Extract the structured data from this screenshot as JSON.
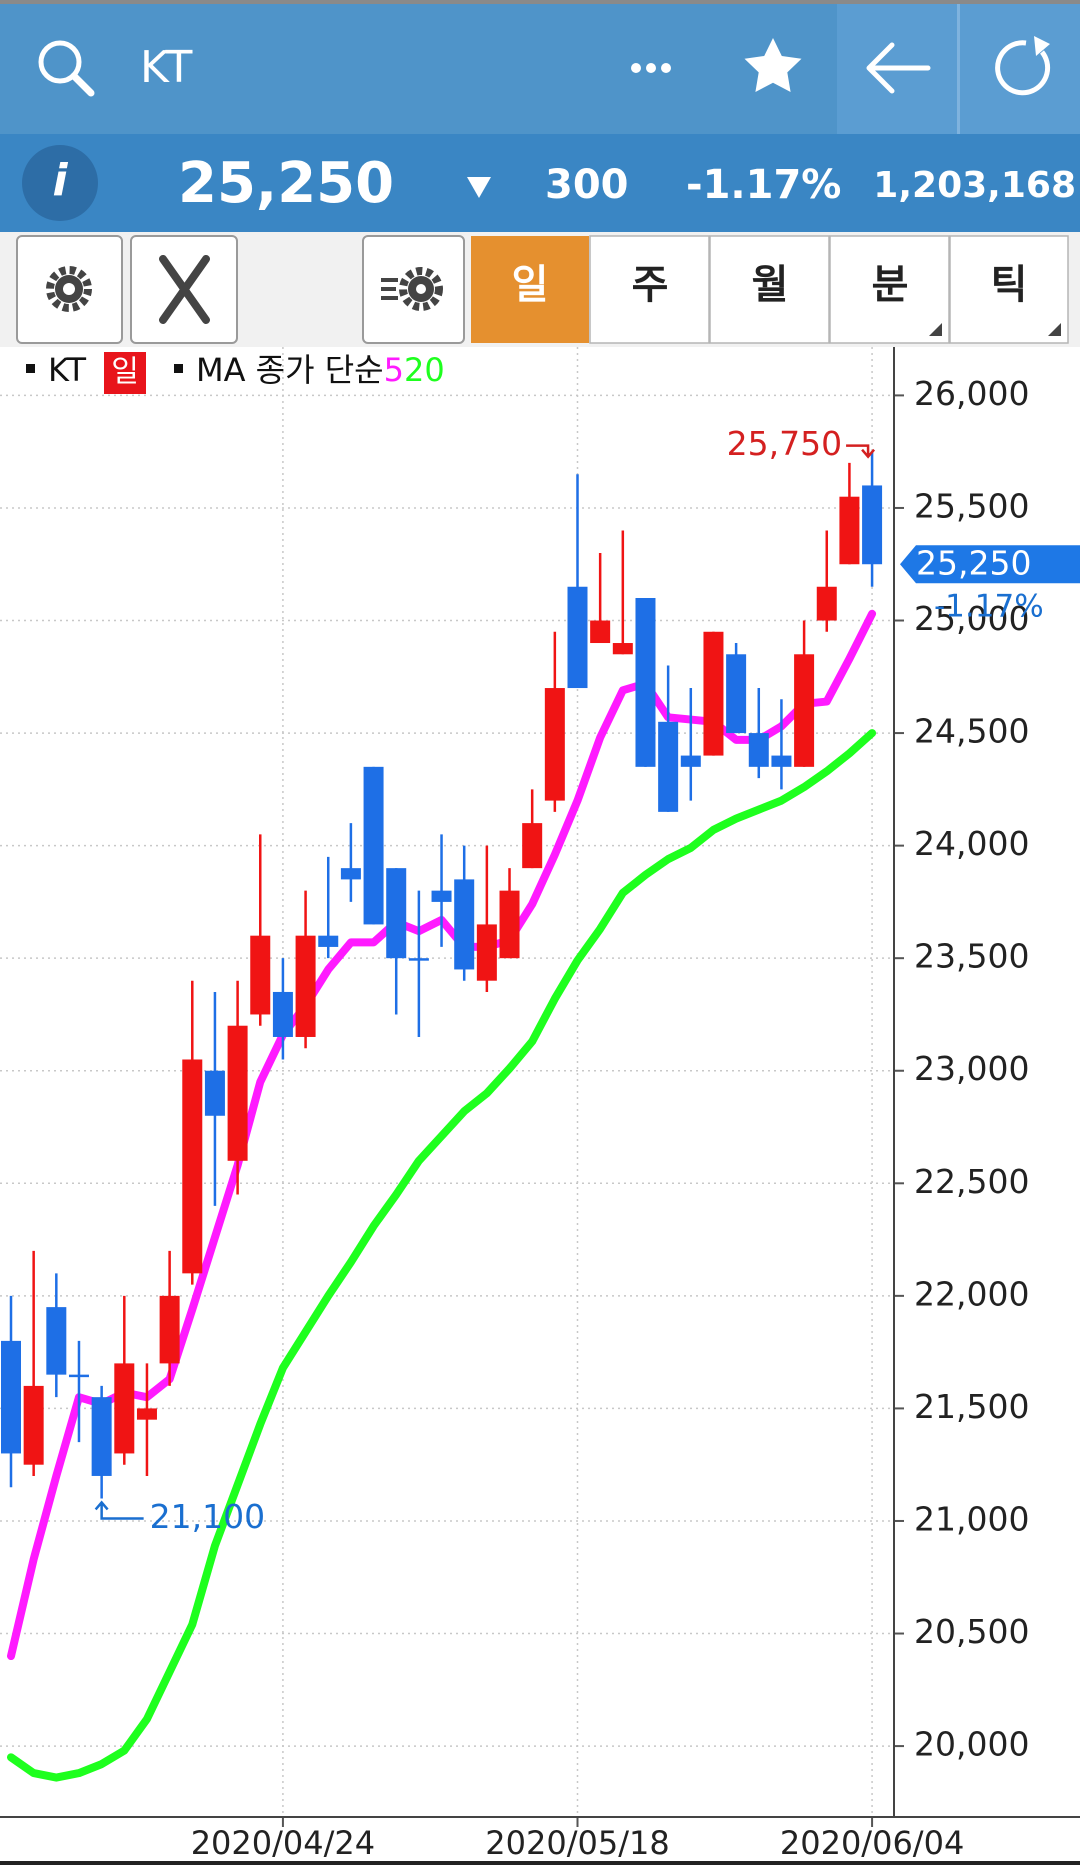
{
  "header": {
    "symbol": "KT",
    "price": "25,250",
    "change": "300",
    "change_pct": "-1.17%",
    "volume": "1,203,168"
  },
  "toolbar": {
    "tabs": [
      "일",
      "주",
      "월",
      "분",
      "틱"
    ]
  },
  "chart_data": {
    "type": "candlestick",
    "legend_name": "KT",
    "period": "일",
    "ma_label": "MA 종가 단순",
    "categories": [
      null,
      null,
      null,
      null,
      null,
      null,
      null,
      null,
      null,
      null,
      null,
      null,
      "2020/04/24",
      null,
      null,
      null,
      null,
      null,
      null,
      null,
      null,
      null,
      null,
      null,
      null,
      "2020/05/18",
      null,
      null,
      null,
      null,
      null,
      null,
      null,
      null,
      null,
      null,
      null,
      null,
      "2020/06/04"
    ],
    "open": [
      21800,
      21250,
      21950,
      21650,
      21550,
      21300,
      21450,
      21700,
      22100,
      23000,
      22600,
      23250,
      23350,
      23150,
      23600,
      23900,
      24350,
      23900,
      23500,
      23800,
      23850,
      23400,
      23500,
      23900,
      24200,
      25150,
      24900,
      24850,
      25100,
      24550,
      24400,
      24400,
      24850,
      24500,
      24400,
      24350,
      25000,
      25250,
      25600
    ],
    "high": [
      22000,
      22200,
      22100,
      21800,
      21600,
      22000,
      21700,
      22200,
      23400,
      23350,
      23400,
      24050,
      23500,
      23800,
      23950,
      24100,
      24350,
      23900,
      23800,
      24050,
      24000,
      24000,
      23900,
      24250,
      24950,
      25650,
      25300,
      25400,
      25100,
      24800,
      24700,
      24950,
      24900,
      24700,
      24650,
      25000,
      25400,
      25700,
      25750
    ],
    "low": [
      21150,
      21200,
      21550,
      21350,
      21100,
      21250,
      21200,
      21600,
      22050,
      22400,
      22450,
      23200,
      23050,
      23100,
      23500,
      23750,
      23650,
      23250,
      23150,
      23550,
      23400,
      23350,
      23500,
      23900,
      24150,
      24700,
      24900,
      24850,
      24350,
      24150,
      24200,
      24400,
      24500,
      24300,
      24250,
      24350,
      24950,
      25250,
      25150
    ],
    "close": [
      21300,
      21600,
      21650,
      21650,
      21200,
      21700,
      21500,
      22000,
      23050,
      22800,
      23200,
      23600,
      23150,
      23600,
      23550,
      23850,
      23650,
      23500,
      23500,
      23750,
      23450,
      23650,
      23800,
      24100,
      24700,
      24700,
      25000,
      24900,
      24350,
      24150,
      24350,
      24950,
      24500,
      24350,
      24350,
      24850,
      25150,
      25550,
      25250
    ],
    "up_color": "#f01414",
    "down_color": "#1e6fe6",
    "ma_series": [
      {
        "name": "5",
        "color": "#ff1aff",
        "values": [
          20400,
          20830,
          21200,
          21550,
          21520,
          21570,
          21550,
          21630,
          21940,
          22260,
          22580,
          22950,
          23160,
          23290,
          23450,
          23570,
          23570,
          23660,
          23620,
          23670,
          23550,
          23550,
          23580,
          23740,
          23960,
          24200,
          24480,
          24690,
          24720,
          24570,
          24560,
          24550,
          24470,
          24470,
          24530,
          24630,
          24640,
          24830,
          25030
        ]
      },
      {
        "name": "20",
        "color": "#1eff1e",
        "values": [
          19950,
          19880,
          19860,
          19880,
          19920,
          19980,
          20120,
          20330,
          20540,
          20890,
          21160,
          21430,
          21680,
          21840,
          22000,
          22150,
          22310,
          22450,
          22600,
          22710,
          22820,
          22900,
          23010,
          23130,
          23320,
          23490,
          23630,
          23790,
          23870,
          23940,
          23990,
          24070,
          24120,
          24160,
          24200,
          24260,
          24330,
          24410,
          24500
        ]
      }
    ],
    "ylim": [
      19685,
      26215
    ],
    "yticks": [
      {
        "value": 20000,
        "label": "20,000"
      },
      {
        "value": 20500,
        "label": "20,500"
      },
      {
        "value": 21000,
        "label": "21,000"
      },
      {
        "value": 21500,
        "label": "21,500"
      },
      {
        "value": 22000,
        "label": "22,000"
      },
      {
        "value": 22500,
        "label": "22,500"
      },
      {
        "value": 23000,
        "label": "23,000"
      },
      {
        "value": 23500,
        "label": "23,500"
      },
      {
        "value": 24000,
        "label": "24,000"
      },
      {
        "value": 24500,
        "label": "24,500"
      },
      {
        "value": 25000,
        "label": "25,000"
      },
      {
        "value": 25500,
        "label": "25,500"
      },
      {
        "value": 26000,
        "label": "26,000"
      }
    ],
    "grid": true,
    "max_label": {
      "value": 25750,
      "label": "25,750"
    },
    "min_label": {
      "value": 21100,
      "label": "21,100"
    },
    "last_price": {
      "value": 25250,
      "label": "25,250",
      "change_pct": "-1.17%"
    }
  }
}
